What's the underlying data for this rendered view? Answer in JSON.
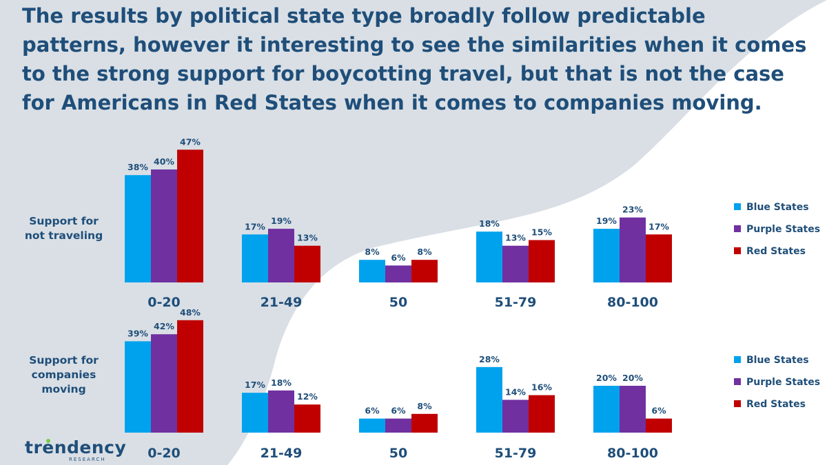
{
  "headline": "The results by political state type broadly follow predictable patterns, however it interesting to see the similarities when it comes to the strong support for boycotting travel, but that is not the case for Americans in Red States when it comes to companies moving.",
  "row_labels": {
    "top": [
      "Support for",
      "not traveling"
    ],
    "bottom": [
      "Support for",
      "companies",
      "moving"
    ]
  },
  "logo": {
    "word": "trendency",
    "sub": "RESEARCH"
  },
  "colors": {
    "title": "#1f4e79",
    "blue": "#00a2ed",
    "purple": "#7030a0",
    "red": "#c00000"
  },
  "chart_data": [
    {
      "type": "bar",
      "title": "Support for not traveling",
      "categories": [
        "0-20",
        "21-49",
        "50",
        "51-79",
        "80-100"
      ],
      "series": [
        {
          "name": "Blue States",
          "values": [
            38,
            17,
            8,
            18,
            19
          ],
          "labels": [
            "38%",
            "17%",
            "8%",
            "18%",
            "19%"
          ]
        },
        {
          "name": "Purple States",
          "values": [
            40,
            19,
            6,
            13,
            23
          ],
          "labels": [
            "40%",
            "19%",
            "6%",
            "13%",
            "23%"
          ]
        },
        {
          "name": "Red States",
          "values": [
            47,
            13,
            8,
            15,
            17
          ],
          "labels": [
            "47%",
            "13%",
            "8%",
            "15%",
            "17%"
          ]
        }
      ],
      "legend": "right",
      "grid": false
    },
    {
      "type": "bar",
      "title": "Support for companies moving",
      "categories": [
        "0-20",
        "21-49",
        "50",
        "51-79",
        "80-100"
      ],
      "series": [
        {
          "name": "Blue States",
          "values": [
            39,
            17,
            6,
            28,
            20
          ],
          "labels": [
            "39%",
            "17%",
            "6%",
            "28%",
            "20%"
          ]
        },
        {
          "name": "Purple States",
          "values": [
            42,
            18,
            6,
            14,
            20
          ],
          "labels": [
            "42%",
            "18%",
            "6%",
            "14%",
            "20%"
          ]
        },
        {
          "name": "Red States",
          "values": [
            48,
            12,
            8,
            16,
            6
          ],
          "labels": [
            "48%",
            "12%",
            "8%",
            "16%",
            "6%"
          ]
        }
      ],
      "legend": "right",
      "grid": false
    }
  ]
}
